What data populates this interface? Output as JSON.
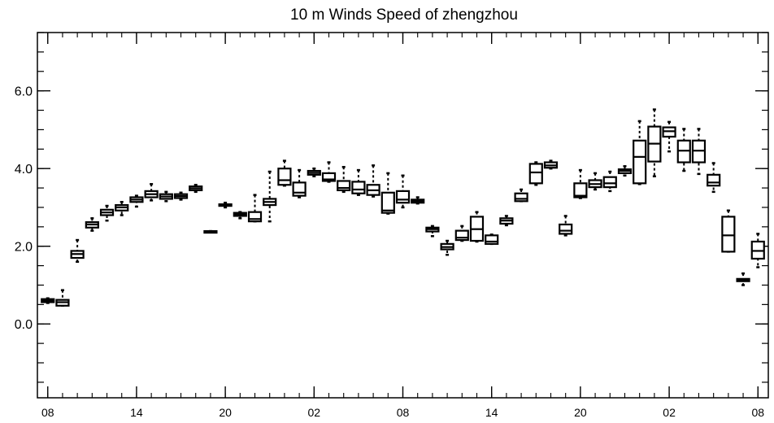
{
  "chart_data": {
    "type": "boxplot",
    "title": "10 m Winds Speed of zhengzhou",
    "xlabel": "",
    "ylabel": "",
    "ylim": [
      -1.9,
      7.5
    ],
    "y_ticks": [
      0.0,
      2.0,
      4.0,
      6.0
    ],
    "y_tick_labels": [
      "0.0",
      "2.0",
      "4.0",
      "6.0"
    ],
    "x_tick_labels": [
      "08",
      "14",
      "20",
      "02",
      "08",
      "14",
      "20",
      "02",
      "08"
    ],
    "x_tick_positions": [
      0,
      6,
      12,
      18,
      24,
      30,
      36,
      42,
      48
    ],
    "x_range": [
      -0.7,
      48.7
    ],
    "grid": false,
    "boxes": [
      {
        "x": 0,
        "q1": 0.56,
        "q3": 0.64,
        "median": 0.6,
        "min": 0.54,
        "max": 0.66
      },
      {
        "x": 1,
        "q1": 0.47,
        "q3": 0.62,
        "median": 0.56,
        "min": 0.47,
        "max": 0.87
      },
      {
        "x": 2,
        "q1": 1.7,
        "q3": 1.88,
        "median": 1.8,
        "min": 1.6,
        "max": 2.16
      },
      {
        "x": 3,
        "q1": 2.48,
        "q3": 2.62,
        "median": 2.56,
        "min": 2.4,
        "max": 2.72
      },
      {
        "x": 4,
        "q1": 2.8,
        "q3": 2.94,
        "median": 2.87,
        "min": 2.66,
        "max": 3.04
      },
      {
        "x": 5,
        "q1": 2.92,
        "q3": 3.06,
        "median": 3.0,
        "min": 2.8,
        "max": 3.14
      },
      {
        "x": 6,
        "q1": 3.14,
        "q3": 3.26,
        "median": 3.2,
        "min": 3.02,
        "max": 3.3
      },
      {
        "x": 7,
        "q1": 3.26,
        "q3": 3.42,
        "median": 3.34,
        "min": 3.18,
        "max": 3.6
      },
      {
        "x": 8,
        "q1": 3.22,
        "q3": 3.34,
        "median": 3.28,
        "min": 3.16,
        "max": 3.4
      },
      {
        "x": 9,
        "q1": 3.24,
        "q3": 3.34,
        "median": 3.29,
        "min": 3.2,
        "max": 3.38
      },
      {
        "x": 10,
        "q1": 3.44,
        "q3": 3.54,
        "median": 3.49,
        "min": 3.4,
        "max": 3.58
      },
      {
        "x": 11,
        "q1": 2.37,
        "q3": 2.39,
        "median": 2.38,
        "min": 2.37,
        "max": 2.39
      },
      {
        "x": 12,
        "q1": 3.04,
        "q3": 3.08,
        "median": 3.06,
        "min": 3.0,
        "max": 3.12
      },
      {
        "x": 13,
        "q1": 2.78,
        "q3": 2.86,
        "median": 2.82,
        "min": 2.72,
        "max": 2.88
      },
      {
        "x": 14,
        "q1": 2.64,
        "q3": 2.88,
        "median": 2.7,
        "min": 2.64,
        "max": 3.32
      },
      {
        "x": 15,
        "q1": 3.06,
        "q3": 3.22,
        "median": 3.14,
        "min": 2.64,
        "max": 3.92
      },
      {
        "x": 16,
        "q1": 3.58,
        "q3": 4.0,
        "median": 3.7,
        "min": 3.56,
        "max": 4.2
      },
      {
        "x": 17,
        "q1": 3.3,
        "q3": 3.64,
        "median": 3.38,
        "min": 3.26,
        "max": 3.96
      },
      {
        "x": 18,
        "q1": 3.84,
        "q3": 3.94,
        "median": 3.89,
        "min": 3.8,
        "max": 4.0
      },
      {
        "x": 19,
        "q1": 3.68,
        "q3": 3.88,
        "median": 3.72,
        "min": 3.66,
        "max": 4.16
      },
      {
        "x": 20,
        "q1": 3.44,
        "q3": 3.68,
        "median": 3.5,
        "min": 3.4,
        "max": 4.04
      },
      {
        "x": 21,
        "q1": 3.36,
        "q3": 3.66,
        "median": 3.46,
        "min": 3.32,
        "max": 3.96
      },
      {
        "x": 22,
        "q1": 3.32,
        "q3": 3.58,
        "median": 3.44,
        "min": 3.28,
        "max": 4.08
      },
      {
        "x": 23,
        "q1": 2.86,
        "q3": 3.38,
        "median": 2.92,
        "min": 2.84,
        "max": 3.88
      },
      {
        "x": 24,
        "q1": 3.12,
        "q3": 3.42,
        "median": 3.2,
        "min": 3.0,
        "max": 3.82
      },
      {
        "x": 25,
        "q1": 3.12,
        "q3": 3.2,
        "median": 3.16,
        "min": 3.1,
        "max": 3.26
      },
      {
        "x": 26,
        "q1": 2.38,
        "q3": 2.48,
        "median": 2.44,
        "min": 2.26,
        "max": 2.52
      },
      {
        "x": 27,
        "q1": 1.92,
        "q3": 2.06,
        "median": 1.98,
        "min": 1.78,
        "max": 2.14
      },
      {
        "x": 28,
        "q1": 2.16,
        "q3": 2.4,
        "median": 2.22,
        "min": 2.14,
        "max": 2.52
      },
      {
        "x": 29,
        "q1": 2.14,
        "q3": 2.76,
        "median": 2.44,
        "min": 2.12,
        "max": 2.88
      },
      {
        "x": 30,
        "q1": 2.06,
        "q3": 2.28,
        "median": 2.12,
        "min": 2.06,
        "max": 2.3
      },
      {
        "x": 31,
        "q1": 2.58,
        "q3": 2.72,
        "median": 2.66,
        "min": 2.54,
        "max": 2.78
      },
      {
        "x": 32,
        "q1": 3.16,
        "q3": 3.36,
        "median": 3.22,
        "min": 3.16,
        "max": 3.46
      },
      {
        "x": 33,
        "q1": 3.62,
        "q3": 4.12,
        "median": 3.9,
        "min": 3.58,
        "max": 4.16
      },
      {
        "x": 34,
        "q1": 4.02,
        "q3": 4.16,
        "median": 4.08,
        "min": 4.0,
        "max": 4.2
      },
      {
        "x": 35,
        "q1": 2.32,
        "q3": 2.56,
        "median": 2.4,
        "min": 2.28,
        "max": 2.78
      },
      {
        "x": 36,
        "q1": 3.26,
        "q3": 3.62,
        "median": 3.3,
        "min": 3.24,
        "max": 3.96
      },
      {
        "x": 37,
        "q1": 3.52,
        "q3": 3.7,
        "median": 3.6,
        "min": 3.46,
        "max": 3.88
      },
      {
        "x": 38,
        "q1": 3.52,
        "q3": 3.78,
        "median": 3.62,
        "min": 3.42,
        "max": 3.92
      },
      {
        "x": 39,
        "q1": 3.88,
        "q3": 3.98,
        "median": 3.94,
        "min": 3.82,
        "max": 4.06
      },
      {
        "x": 40,
        "q1": 3.62,
        "q3": 4.72,
        "median": 4.3,
        "min": 3.6,
        "max": 5.22
      },
      {
        "x": 41,
        "q1": 4.18,
        "q3": 5.08,
        "median": 4.64,
        "min": 3.8,
        "max": 5.52
      },
      {
        "x": 42,
        "q1": 4.82,
        "q3": 5.06,
        "median": 4.96,
        "min": 4.44,
        "max": 5.2
      },
      {
        "x": 43,
        "q1": 4.16,
        "q3": 4.72,
        "median": 4.46,
        "min": 3.94,
        "max": 5.02
      },
      {
        "x": 44,
        "q1": 4.16,
        "q3": 4.72,
        "median": 4.46,
        "min": 3.86,
        "max": 5.02
      },
      {
        "x": 45,
        "q1": 3.56,
        "q3": 3.84,
        "median": 3.64,
        "min": 3.4,
        "max": 4.14
      },
      {
        "x": 46,
        "q1": 1.86,
        "q3": 2.76,
        "median": 2.28,
        "min": 1.86,
        "max": 2.92
      },
      {
        "x": 47,
        "q1": 1.1,
        "q3": 1.16,
        "median": 1.14,
        "min": 1.0,
        "max": 1.3
      },
      {
        "x": 48,
        "q1": 1.68,
        "q3": 2.12,
        "median": 1.88,
        "min": 1.46,
        "max": 2.32
      }
    ]
  }
}
